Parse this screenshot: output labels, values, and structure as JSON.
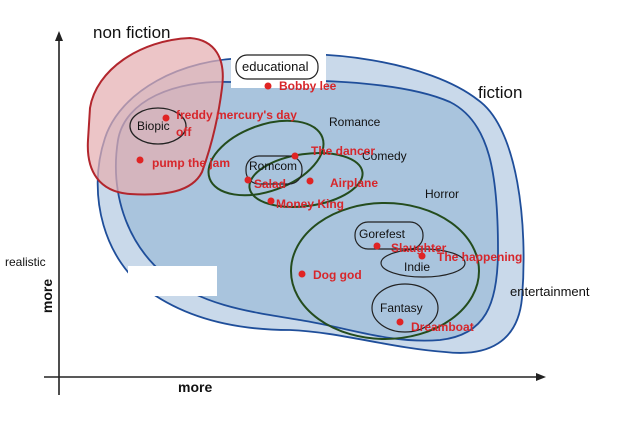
{
  "diagram": {
    "title_nonfiction": "non fiction",
    "title_fiction": "fiction",
    "label_educational": "educational",
    "label_entertainment": "entertainment",
    "label_realistic": "realistic",
    "y_axis_label": "more",
    "x_axis_label": "more",
    "groups": {
      "biopic": "Biopic",
      "romance": "Romance",
      "romcom": "Romcom",
      "comedy": "Comedy",
      "horror": "Horror",
      "gorefest": "Gorefest",
      "indie": "Indie",
      "fantasy": "Fantasy"
    },
    "films": {
      "bobby_lee": "Bobby lee",
      "freddy_line1": "freddy mercury's day",
      "freddy_line2": "off",
      "pump_the_jam": "pump the jam",
      "the_dancer": "The dancer",
      "salad": "Salad",
      "airplane": "Airplane",
      "money_king": "Money King",
      "slaughter": "Slaughter",
      "the_happening": "The happening",
      "dog_god": "Dog god",
      "dreamboat": "Dreamboat"
    },
    "colors": {
      "fiction_outer": "#c9d9ea",
      "fiction_inner": "#a9c4dd",
      "blue_stroke": "#1f4e9a",
      "nonfiction_fill": "#e9b9bb",
      "nonfiction_stroke": "#b2262d",
      "green_stroke": "#244c1d",
      "film_red": "#d7262b"
    }
  }
}
